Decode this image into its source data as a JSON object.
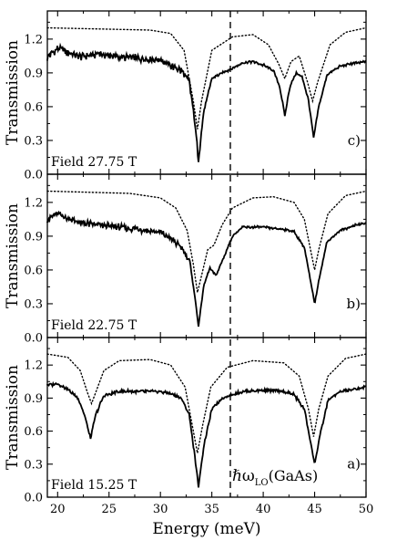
{
  "chart_data": {
    "type": "line",
    "xlabel": "Energy (meV)",
    "xlim": [
      19,
      50
    ],
    "x_ticks": [
      20,
      25,
      30,
      35,
      40,
      45,
      50
    ],
    "ylabel": "Transmission",
    "ylim": [
      0.0,
      1.45
    ],
    "y_ticks": [
      0.0,
      0.3,
      0.6,
      0.9,
      1.2
    ],
    "vertical_line": {
      "x": 36.8,
      "style": "dashed",
      "label": "ℏωLO(GaAs)",
      "label_main": "ℏω",
      "label_sub": "LO",
      "label_tail": "(GaAs)"
    },
    "panels": [
      {
        "id": "c",
        "letter": "c)",
        "field_label": "Field 27.75 T",
        "series": [
          {
            "style": "solid",
            "baseline": 1.0,
            "noise": 0.04,
            "noise_end": 34,
            "points": [
              [
                19,
                1.04
              ],
              [
                20,
                1.12
              ],
              [
                22,
                1.04
              ],
              [
                24,
                1.07
              ],
              [
                26,
                1.04
              ],
              [
                28,
                1.03
              ],
              [
                30,
                1.02
              ],
              [
                31,
                0.96
              ],
              [
                32,
                0.92
              ],
              [
                32.8,
                0.82
              ],
              [
                33.3,
                0.5
              ],
              [
                33.7,
                0.12
              ],
              [
                34.2,
                0.55
              ],
              [
                35,
                0.85
              ],
              [
                36,
                0.9
              ],
              [
                37,
                0.94
              ],
              [
                38,
                0.99
              ],
              [
                39,
                1.0
              ],
              [
                40,
                0.97
              ],
              [
                41,
                0.92
              ],
              [
                41.6,
                0.78
              ],
              [
                42.1,
                0.52
              ],
              [
                42.6,
                0.78
              ],
              [
                43.2,
                0.9
              ],
              [
                43.8,
                0.86
              ],
              [
                44.4,
                0.66
              ],
              [
                44.9,
                0.32
              ],
              [
                45.4,
                0.6
              ],
              [
                46.2,
                0.88
              ],
              [
                47.5,
                0.96
              ],
              [
                48.5,
                0.98
              ],
              [
                50,
                1.0
              ]
            ]
          },
          {
            "style": "dotted",
            "baseline": 1.3,
            "points": [
              [
                19,
                1.3
              ],
              [
                29,
                1.28
              ],
              [
                31,
                1.25
              ],
              [
                32.3,
                1.1
              ],
              [
                33.2,
                0.65
              ],
              [
                33.6,
                0.4
              ],
              [
                34.0,
                0.65
              ],
              [
                35,
                1.1
              ],
              [
                37,
                1.22
              ],
              [
                39,
                1.24
              ],
              [
                40.5,
                1.15
              ],
              [
                41.5,
                0.98
              ],
              [
                42.1,
                0.85
              ],
              [
                42.7,
                1.0
              ],
              [
                43.5,
                1.05
              ],
              [
                44.3,
                0.82
              ],
              [
                44.8,
                0.65
              ],
              [
                45.3,
                0.82
              ],
              [
                46.5,
                1.15
              ],
              [
                48,
                1.26
              ],
              [
                50,
                1.3
              ]
            ]
          }
        ]
      },
      {
        "id": "b",
        "letter": "b)",
        "field_label": "Field 22.75 T",
        "series": [
          {
            "style": "solid",
            "baseline": 1.0,
            "noise": 0.035,
            "noise_end": 33,
            "points": [
              [
                19,
                1.05
              ],
              [
                20,
                1.1
              ],
              [
                22,
                1.02
              ],
              [
                24,
                1.0
              ],
              [
                26,
                0.98
              ],
              [
                28,
                0.96
              ],
              [
                30,
                0.93
              ],
              [
                31,
                0.88
              ],
              [
                32,
                0.8
              ],
              [
                32.8,
                0.7
              ],
              [
                33.3,
                0.4
              ],
              [
                33.7,
                0.1
              ],
              [
                34.2,
                0.45
              ],
              [
                34.8,
                0.62
              ],
              [
                35.4,
                0.55
              ],
              [
                36.2,
                0.72
              ],
              [
                37,
                0.9
              ],
              [
                38,
                0.98
              ],
              [
                40,
                0.98
              ],
              [
                42,
                0.96
              ],
              [
                43,
                0.94
              ],
              [
                44,
                0.8
              ],
              [
                44.5,
                0.55
              ],
              [
                45,
                0.3
              ],
              [
                45.5,
                0.55
              ],
              [
                46.2,
                0.85
              ],
              [
                47.5,
                0.95
              ],
              [
                49,
                1.0
              ],
              [
                50,
                1.02
              ]
            ]
          },
          {
            "style": "dotted",
            "baseline": 1.3,
            "points": [
              [
                19,
                1.3
              ],
              [
                27,
                1.28
              ],
              [
                30,
                1.24
              ],
              [
                31.5,
                1.15
              ],
              [
                32.6,
                0.95
              ],
              [
                33.2,
                0.65
              ],
              [
                33.6,
                0.4
              ],
              [
                34.0,
                0.55
              ],
              [
                34.6,
                0.78
              ],
              [
                35.2,
                0.82
              ],
              [
                36,
                1.0
              ],
              [
                37,
                1.15
              ],
              [
                39,
                1.24
              ],
              [
                41,
                1.25
              ],
              [
                43,
                1.2
              ],
              [
                44,
                1.05
              ],
              [
                44.6,
                0.78
              ],
              [
                45,
                0.6
              ],
              [
                45.4,
                0.78
              ],
              [
                46.3,
                1.1
              ],
              [
                48,
                1.26
              ],
              [
                50,
                1.3
              ]
            ]
          }
        ]
      },
      {
        "id": "a",
        "letter": "a)",
        "field_label": "Field 15.25 T",
        "series": [
          {
            "style": "solid",
            "baseline": 1.0,
            "noise": 0.018,
            "noise_end": 50,
            "points": [
              [
                19,
                1.02
              ],
              [
                20,
                1.03
              ],
              [
                21,
                0.98
              ],
              [
                22,
                0.9
              ],
              [
                22.7,
                0.72
              ],
              [
                23.2,
                0.53
              ],
              [
                23.7,
                0.75
              ],
              [
                24.5,
                0.92
              ],
              [
                26,
                0.96
              ],
              [
                28,
                0.96
              ],
              [
                30,
                0.96
              ],
              [
                31,
                0.94
              ],
              [
                32,
                0.9
              ],
              [
                32.8,
                0.75
              ],
              [
                33.3,
                0.4
              ],
              [
                33.7,
                0.1
              ],
              [
                34.2,
                0.45
              ],
              [
                35,
                0.8
              ],
              [
                36,
                0.9
              ],
              [
                38,
                0.96
              ],
              [
                40,
                0.97
              ],
              [
                42,
                0.96
              ],
              [
                43,
                0.93
              ],
              [
                44,
                0.8
              ],
              [
                44.5,
                0.55
              ],
              [
                45,
                0.3
              ],
              [
                45.5,
                0.55
              ],
              [
                46.3,
                0.88
              ],
              [
                47.5,
                0.96
              ],
              [
                49,
                0.98
              ],
              [
                50,
                1.0
              ]
            ]
          },
          {
            "style": "dotted",
            "baseline": 1.3,
            "points": [
              [
                19,
                1.3
              ],
              [
                21,
                1.27
              ],
              [
                22.2,
                1.15
              ],
              [
                22.9,
                0.95
              ],
              [
                23.3,
                0.85
              ],
              [
                23.7,
                0.95
              ],
              [
                24.5,
                1.15
              ],
              [
                26,
                1.24
              ],
              [
                29,
                1.25
              ],
              [
                31,
                1.2
              ],
              [
                32.4,
                1.0
              ],
              [
                33.1,
                0.65
              ],
              [
                33.6,
                0.4
              ],
              [
                34.1,
                0.65
              ],
              [
                34.9,
                1.0
              ],
              [
                36.5,
                1.18
              ],
              [
                39,
                1.24
              ],
              [
                42,
                1.22
              ],
              [
                43.5,
                1.1
              ],
              [
                44.4,
                0.8
              ],
              [
                44.9,
                0.55
              ],
              [
                45.4,
                0.8
              ],
              [
                46.3,
                1.1
              ],
              [
                48,
                1.26
              ],
              [
                50,
                1.3
              ]
            ]
          }
        ]
      }
    ]
  }
}
